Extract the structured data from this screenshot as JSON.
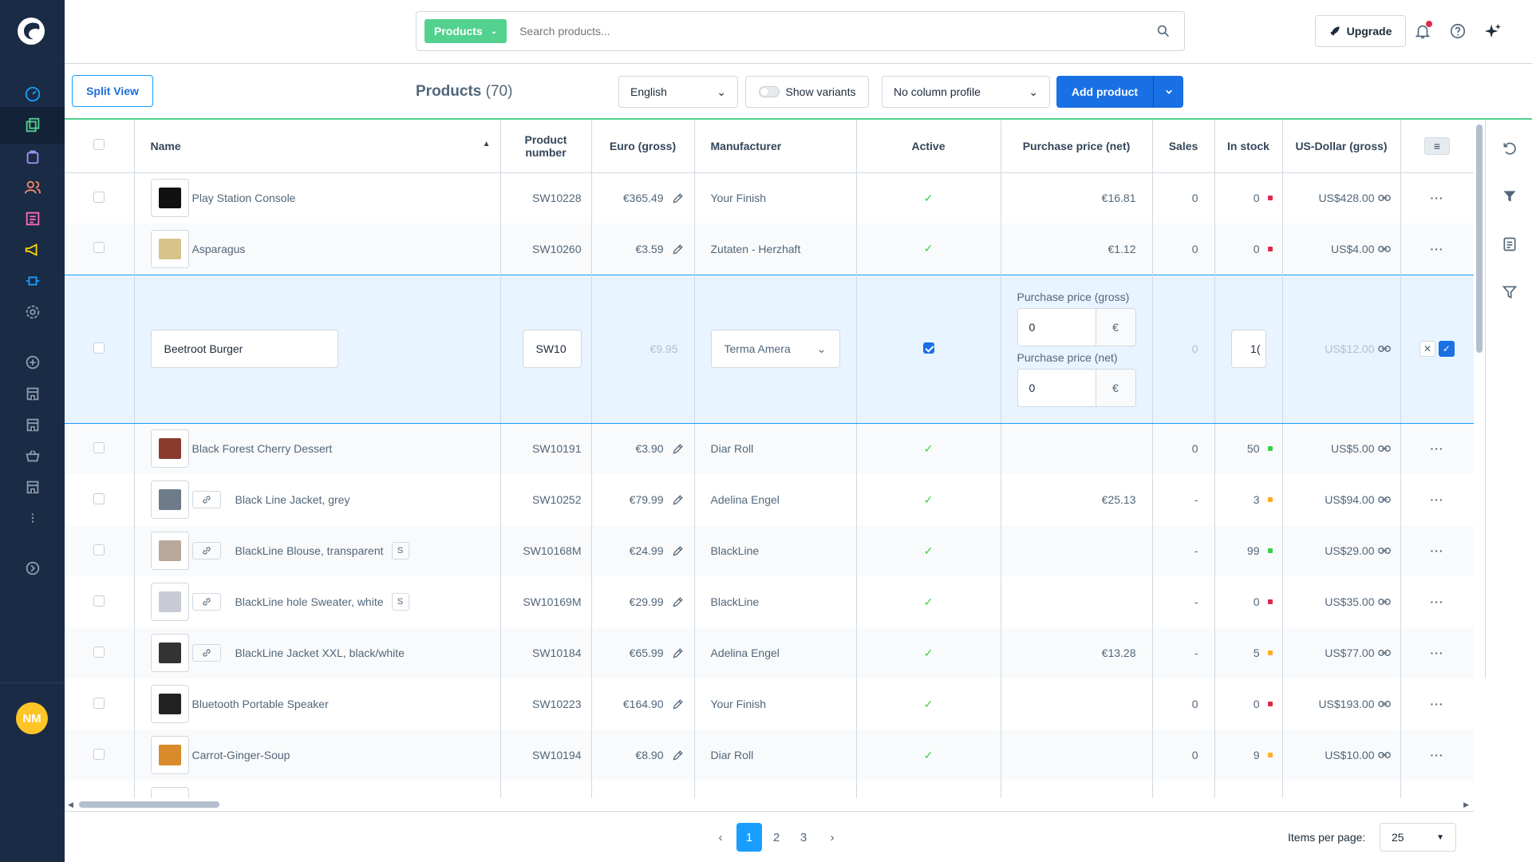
{
  "topbar": {
    "search_type": "Products",
    "search_placeholder": "Search products...",
    "upgrade_label": "Upgrade"
  },
  "smartbar": {
    "split_view_label": "Split View",
    "title": "Products",
    "count": "(70)",
    "language": "English",
    "show_variants_label": "Show variants",
    "column_profile": "No column profile",
    "add_product_label": "Add product"
  },
  "columns": [
    "Name",
    "Product number",
    "Euro (gross)",
    "Manufacturer",
    "Active",
    "Purchase price (net)",
    "Sales",
    "In stock",
    "US-Dollar (gross)"
  ],
  "rows": [
    {
      "name": "Play Station Console",
      "number": "SW10228",
      "euro": "€365.49",
      "manufacturer": "Your Finish",
      "purchase": "€16.81",
      "sales": "0",
      "stock": "0",
      "stock_status": "red",
      "usd": "US$428.00",
      "thumb_color": "#111111",
      "variant": false,
      "badge": ""
    },
    {
      "name": "Asparagus",
      "number": "SW10260",
      "euro": "€3.59",
      "manufacturer": "Zutaten - Herzhaft",
      "purchase": "€1.12",
      "sales": "0",
      "stock": "0",
      "stock_status": "red",
      "usd": "US$4.00",
      "thumb_color": "#d8c38a",
      "variant": false,
      "badge": ""
    },
    {
      "name": "Black Forest Cherry Dessert",
      "number": "SW10191",
      "euro": "€3.90",
      "manufacturer": "Diar Roll",
      "purchase": "",
      "sales": "0",
      "stock": "50",
      "stock_status": "green",
      "usd": "US$5.00",
      "thumb_color": "#8a3b2e",
      "variant": false,
      "badge": ""
    },
    {
      "name": "Black Line Jacket, grey",
      "number": "SW10252",
      "euro": "€79.99",
      "manufacturer": "Adelina Engel",
      "purchase": "€25.13",
      "sales": "-",
      "stock": "3",
      "stock_status": "orange",
      "usd": "US$94.00",
      "thumb_color": "#6e7b88",
      "variant": true,
      "badge": ""
    },
    {
      "name": "BlackLine Blouse, transparent",
      "number": "SW10168M",
      "euro": "€24.99",
      "manufacturer": "BlackLine",
      "purchase": "",
      "sales": "-",
      "stock": "99",
      "stock_status": "green",
      "usd": "US$29.00",
      "thumb_color": "#b9a89a",
      "variant": true,
      "badge": "S"
    },
    {
      "name": "BlackLine hole Sweater, white",
      "number": "SW10169M",
      "euro": "€29.99",
      "manufacturer": "BlackLine",
      "purchase": "",
      "sales": "-",
      "stock": "0",
      "stock_status": "red",
      "usd": "US$35.00",
      "thumb_color": "#c9ccd6",
      "variant": true,
      "badge": "S"
    },
    {
      "name": "BlackLine Jacket XXL, black/white",
      "number": "SW10184",
      "euro": "€65.99",
      "manufacturer": "Adelina Engel",
      "purchase": "€13.28",
      "sales": "-",
      "stock": "5",
      "stock_status": "orange",
      "usd": "US$77.00",
      "thumb_color": "#333333",
      "variant": true,
      "badge": ""
    },
    {
      "name": "Bluetooth Portable Speaker",
      "number": "SW10223",
      "euro": "€164.90",
      "manufacturer": "Your Finish",
      "purchase": "",
      "sales": "0",
      "stock": "0",
      "stock_status": "red",
      "usd": "US$193.00",
      "thumb_color": "#222222",
      "variant": false,
      "badge": ""
    },
    {
      "name": "Carrot-Ginger-Soup",
      "number": "SW10194",
      "euro": "€8.90",
      "manufacturer": "Diar Roll",
      "purchase": "",
      "sales": "0",
      "stock": "9",
      "stock_status": "orange",
      "usd": "US$10.00",
      "thumb_color": "#d98a2b",
      "variant": false,
      "badge": ""
    }
  ],
  "edit_row": {
    "name": "Beetroot Burger",
    "number": "SW10",
    "euro": "€9.95",
    "manufacturer": "Terma Amera",
    "purchase_gross_label": "Purchase price (gross)",
    "purchase_gross_value": "0",
    "purchase_net_label": "Purchase price (net)",
    "purchase_net_value": "0",
    "currency": "€",
    "sales": "0",
    "stock": "1(",
    "usd": "US$12.00"
  },
  "pagination": {
    "pages": [
      "1",
      "2",
      "3"
    ],
    "current": "1",
    "items_per_page_label": "Items per page:",
    "items_per_page": "25"
  },
  "user": {
    "initials": "NM"
  },
  "colors": {
    "sidebar": "#1a2b45",
    "accent": "#1970e4",
    "green": "#52d18f",
    "avatar": "#ffc527"
  }
}
